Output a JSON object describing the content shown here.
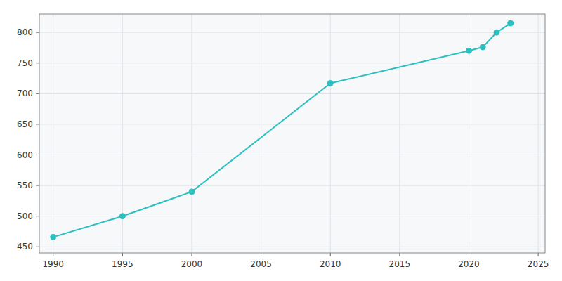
{
  "chart_data": {
    "type": "line",
    "x": [
      1990,
      1995,
      2000,
      2010,
      2020,
      2021,
      2022,
      2023
    ],
    "values": [
      466,
      500,
      540,
      717,
      770,
      776,
      800,
      815
    ],
    "color": "#2BBFBF",
    "marker": "circle",
    "xlim": [
      1989,
      2025.5
    ],
    "ylim": [
      440,
      830
    ],
    "xticks": [
      1990,
      1995,
      2000,
      2005,
      2010,
      2015,
      2020,
      2025
    ],
    "yticks": [
      450,
      500,
      550,
      600,
      650,
      700,
      750,
      800
    ],
    "grid": true
  }
}
